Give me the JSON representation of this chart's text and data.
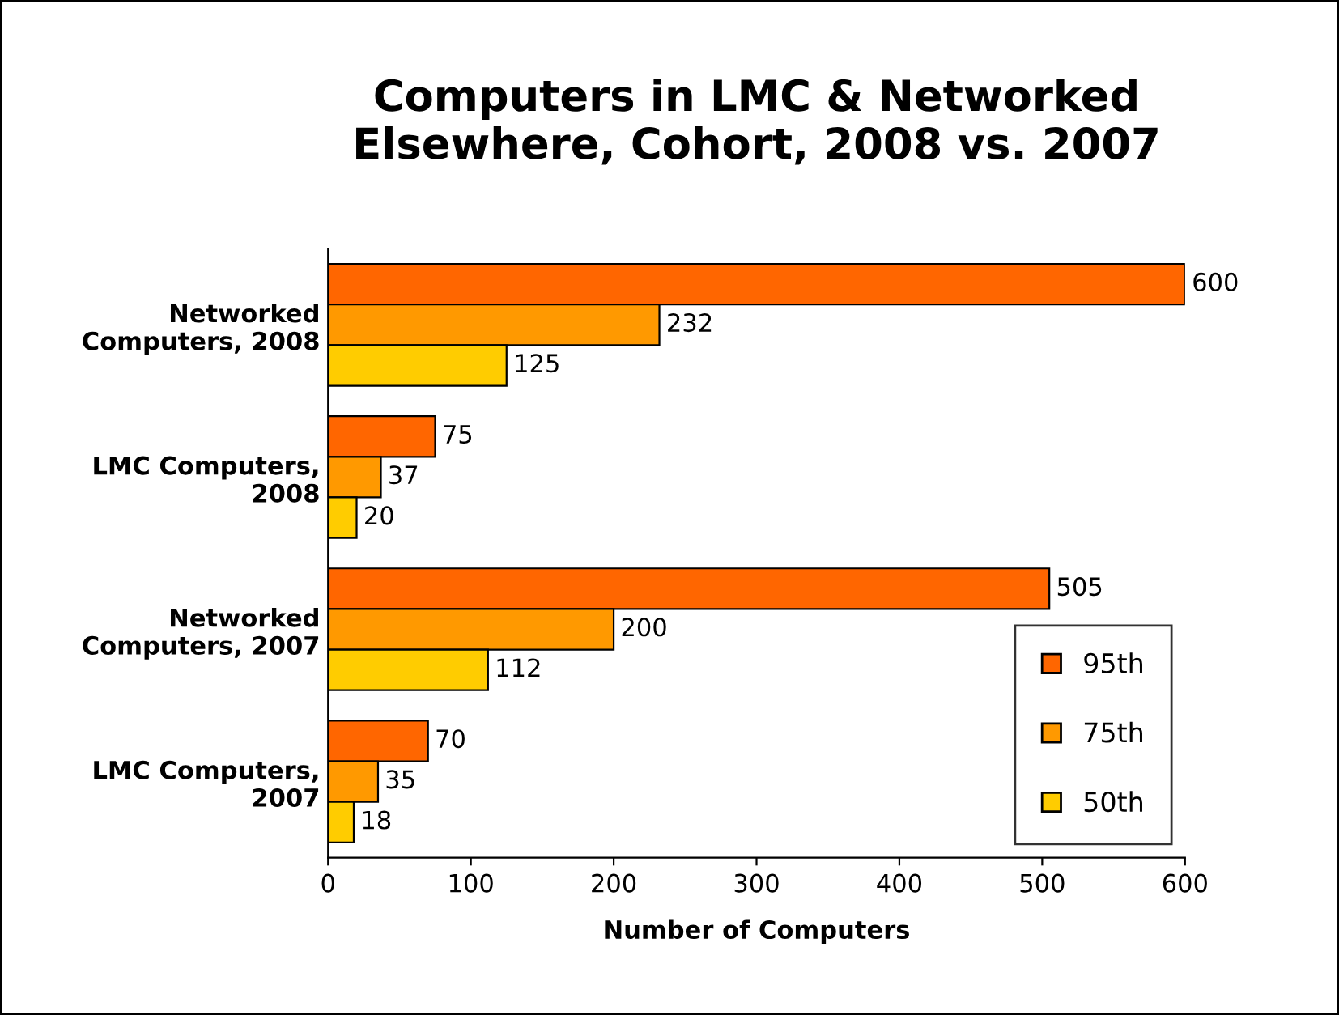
{
  "chart_data": {
    "type": "bar",
    "orientation": "horizontal",
    "title": "Computers in LMC & Networked\nElsewhere, Cohort, 2008 vs. 2007",
    "xlabel": "Number of Computers",
    "categories": [
      "Networked\nComputers, 2008",
      "LMC Computers,\n2008",
      "Networked\nComputers, 2007",
      "LMC Computers,\n2007"
    ],
    "series": [
      {
        "name": "95th",
        "color": "#ff6600",
        "values": [
          600,
          75,
          505,
          70
        ]
      },
      {
        "name": "75th",
        "color": "#ff9900",
        "values": [
          232,
          37,
          200,
          35
        ]
      },
      {
        "name": "50th",
        "color": "#ffcc00",
        "values": [
          125,
          20,
          112,
          18
        ]
      }
    ],
    "xlim": [
      0,
      600
    ],
    "xticks": [
      0,
      100,
      200,
      300,
      400,
      500,
      600
    ],
    "data_labels": true,
    "legend": "bottom right",
    "grid": false
  }
}
